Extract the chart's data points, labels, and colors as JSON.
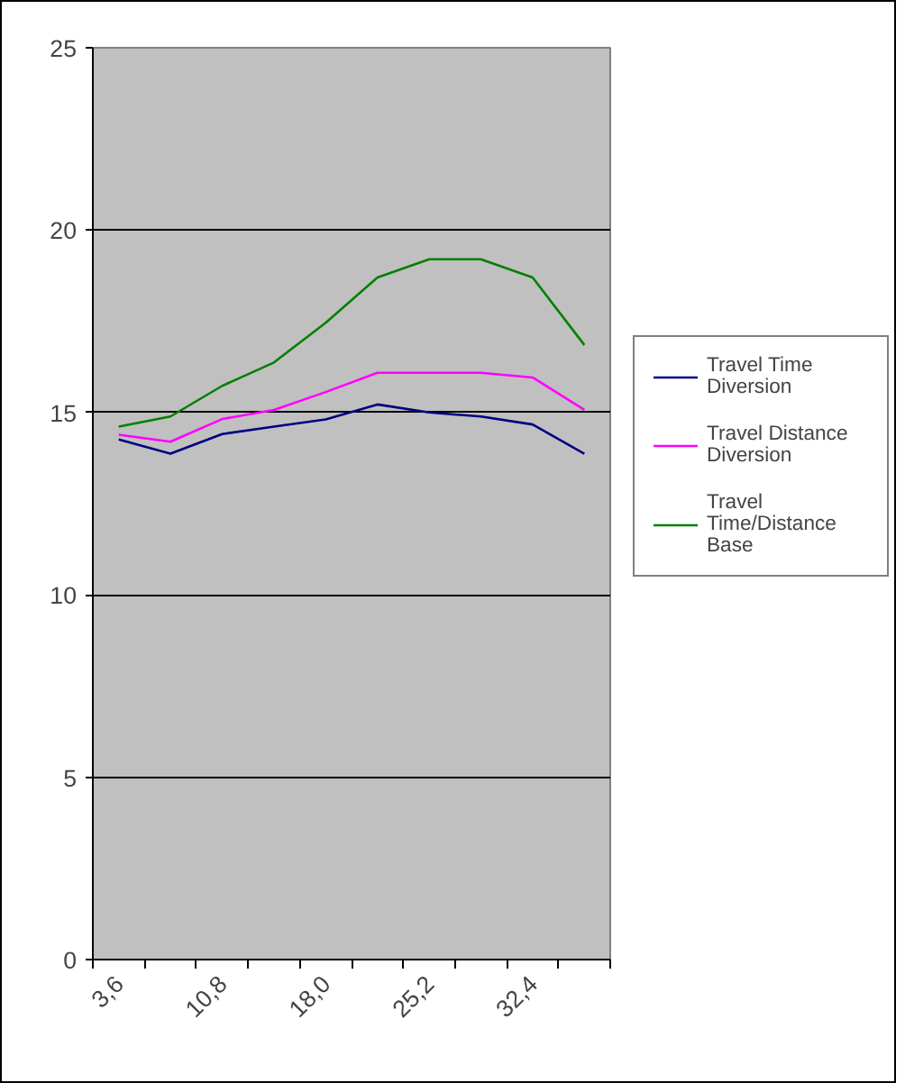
{
  "chart_data": {
    "type": "line",
    "categories": [
      "3,6",
      null,
      "10,8",
      null,
      "18,0",
      null,
      "25,2",
      null,
      "32,4",
      null
    ],
    "series": [
      {
        "name": "Travel Time Diversion",
        "color": "#000080",
        "values": [
          14.26,
          13.87,
          14.41,
          14.61,
          14.81,
          15.22,
          15.0,
          14.89,
          14.67,
          13.87
        ]
      },
      {
        "name": "Travel Distance Diversion",
        "color": "#ff00ff",
        "values": [
          14.39,
          14.2,
          14.82,
          15.07,
          15.56,
          16.09,
          16.09,
          16.09,
          15.96,
          15.07
        ]
      },
      {
        "name": "Travel Time/Distance Base",
        "color": "#008000",
        "values": [
          14.61,
          14.89,
          15.73,
          16.37,
          17.46,
          18.7,
          19.2,
          19.2,
          18.7,
          16.85
        ]
      }
    ],
    "ylim": [
      0,
      25
    ],
    "yticks": [
      0,
      5,
      10,
      15,
      20,
      25
    ],
    "grid": "y",
    "legend": "right",
    "marker": "none",
    "line_style": "solid"
  }
}
